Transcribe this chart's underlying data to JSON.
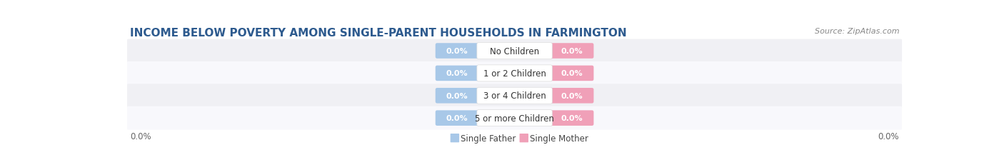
{
  "title": "INCOME BELOW POVERTY AMONG SINGLE-PARENT HOUSEHOLDS IN FARMINGTON",
  "source": "Source: ZipAtlas.com",
  "categories": [
    "No Children",
    "1 or 2 Children",
    "3 or 4 Children",
    "5 or more Children"
  ],
  "single_father_values": [
    0.0,
    0.0,
    0.0,
    0.0
  ],
  "single_mother_values": [
    0.0,
    0.0,
    0.0,
    0.0
  ],
  "father_color": "#a8c8e8",
  "mother_color": "#f0a0b8",
  "title_fontsize": 11,
  "source_fontsize": 8,
  "legend_father": "Single Father",
  "legend_mother": "Single Mother",
  "background_color": "#ffffff",
  "row_bg_colors": [
    "#f0f0f4",
    "#f8f8fc"
  ],
  "value_text_color": "#ffffff",
  "cat_text_color": "#333333"
}
